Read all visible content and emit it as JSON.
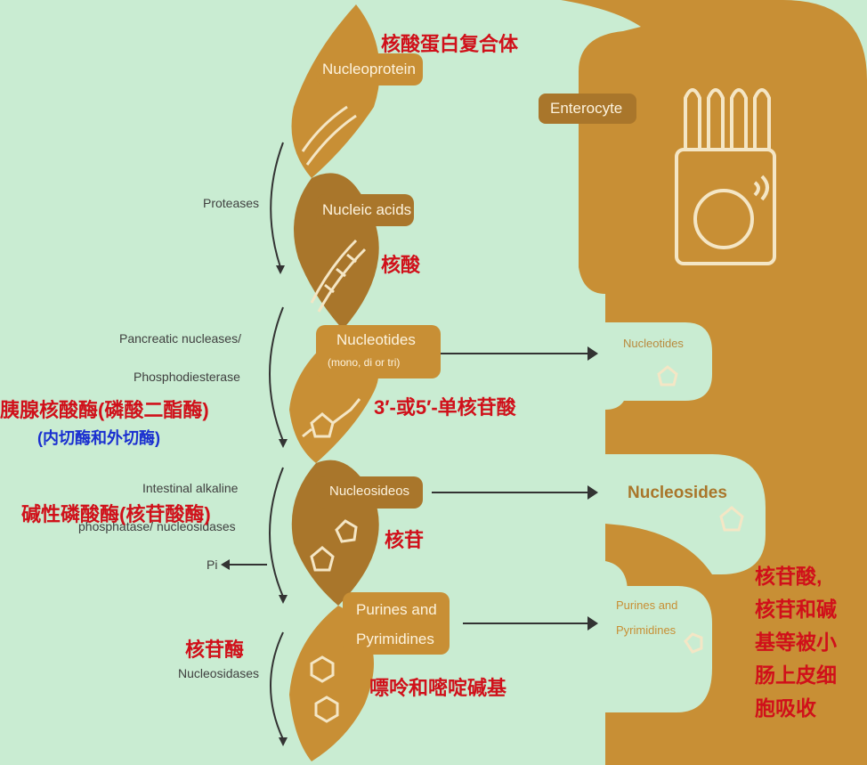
{
  "colors": {
    "background": "#c9ecd2",
    "band": "#c88f35",
    "band_dark": "#a9762b",
    "annotation": "#d0101a",
    "annotation_blue": "#1a2fd0"
  },
  "helix": {
    "nucleoprotein": "Nucleoprotein",
    "nucleic_acids": "Nucleic acids",
    "nucleotides": "Nucleotides",
    "nucleotides_sub": "(mono, di or tri)",
    "nucleosides": "Nucleosideos",
    "purines_1": "Purines and",
    "purines_2": "Pyrimidines"
  },
  "enzymes": {
    "proteases": "Proteases",
    "pancreatic_1": "Pancreatic nucleases/",
    "pancreatic_2": "Phosphodiesterase",
    "intestinal_1": "Intestinal alkaline",
    "intestinal_2": "phosphatase/ nucleosidases",
    "pi": "Pi",
    "nucleosidases": "Nucleosidases"
  },
  "enterocyte": {
    "label": "Enterocyte",
    "nucleotides": "Nucleotides",
    "nucleosides": "Nucleosides",
    "purines_1": "Purines and",
    "purines_2": "Pyrimidines"
  },
  "annotations": {
    "nucleoprotein_cn": "核酸蛋白复合体",
    "nucleic_acid_cn": "核酸",
    "mononucleotide_cn": "3′-或5′-单核苷酸",
    "pancreatic_cn": "胰腺核酸酶(磷酸二酯酶)",
    "endo_exo_cn": "(内切酶和外切酶)",
    "phosphatase_cn": "碱性磷酸酶(核苷酸酶)",
    "nucleoside_cn": "核苷",
    "nucleosidase_cn": "核苷酶",
    "bases_cn": "嘌呤和嘧啶碱基",
    "absorb_1": "核苷酸,",
    "absorb_2": "核苷和碱",
    "absorb_3": "基等被小",
    "absorb_4": "肠上皮细",
    "absorb_5": "胞吸收"
  }
}
